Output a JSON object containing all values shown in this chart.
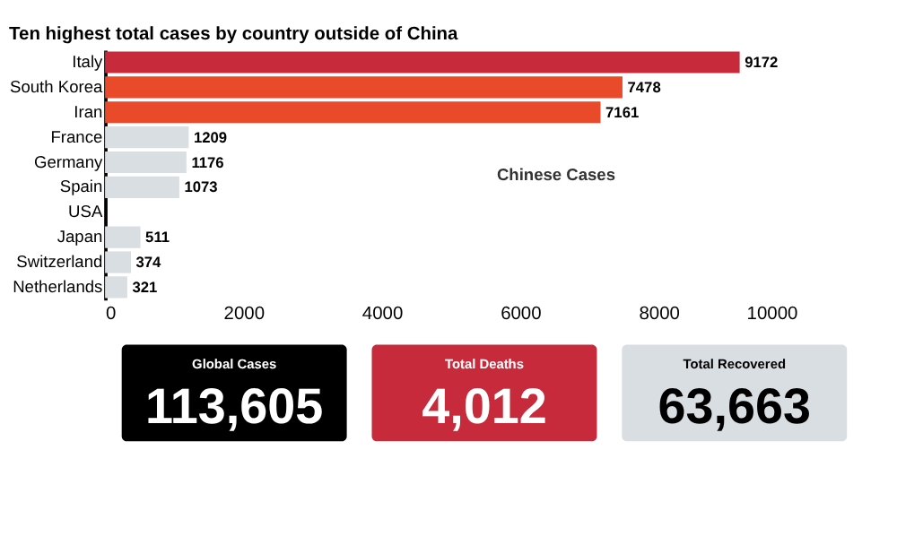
{
  "chart_data": [
    {
      "type": "bar",
      "orientation": "horizontal",
      "title": "Ten highest total cases by country outside of China",
      "categories": [
        "Italy",
        "South Korea",
        "Iran",
        "France",
        "Germany",
        "Spain",
        "USA",
        "Japan",
        "Switzerland",
        "Netherlands"
      ],
      "values": [
        9172,
        7478,
        7161,
        1209,
        1176,
        1073,
        null,
        511,
        374,
        321
      ],
      "colors": [
        "#c62a3b",
        "#e84a2a",
        "#e84a2a",
        "#d9dee2",
        "#d9dee2",
        "#d9dee2",
        "#d9dee2",
        "#d9dee2",
        "#d9dee2",
        "#d9dee2"
      ],
      "xlim": [
        0,
        10000
      ],
      "xticks": [
        0,
        2000,
        4000,
        6000,
        8000,
        10000
      ],
      "grid": false,
      "data_labels": true,
      "annotations": [
        "Chinese Cases"
      ]
    },
    {
      "type": "other",
      "annotations": [
        "Global Cases",
        "113,605",
        "Total Deaths",
        "4,012",
        "Total Recovered",
        "63,663"
      ],
      "colors": [
        "#000000",
        "#c62a3b",
        "#d9dee2"
      ]
    }
  ]
}
